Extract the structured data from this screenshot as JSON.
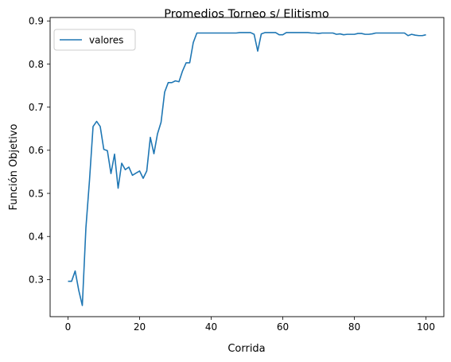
{
  "chart_data": {
    "type": "line",
    "title": "Promedios Torneo s/ Elitismo",
    "xlabel": "Corrida",
    "ylabel": "Función Objetivo",
    "xlim": [
      -5,
      105
    ],
    "ylim": [
      0.214,
      0.908
    ],
    "xticks": [
      "0",
      "20",
      "40",
      "60",
      "80",
      "100"
    ],
    "yticks": [
      "0.3",
      "0.4",
      "0.5",
      "0.6",
      "0.7",
      "0.8",
      "0.9"
    ],
    "grid": false,
    "legend": {
      "position": "upper-left",
      "entries": [
        "valores"
      ]
    },
    "series": [
      {
        "name": "valores",
        "color": "#1f77b4",
        "x": [
          0,
          1,
          2,
          3,
          4,
          5,
          6,
          7,
          8,
          9,
          10,
          11,
          12,
          13,
          14,
          15,
          16,
          17,
          18,
          19,
          20,
          21,
          22,
          23,
          24,
          25,
          26,
          27,
          28,
          29,
          30,
          31,
          32,
          33,
          34,
          35,
          36,
          37,
          38,
          39,
          40,
          41,
          42,
          43,
          44,
          45,
          46,
          47,
          48,
          49,
          50,
          51,
          52,
          53,
          54,
          55,
          56,
          57,
          58,
          59,
          60,
          61,
          62,
          63,
          64,
          65,
          66,
          67,
          68,
          69,
          70,
          71,
          72,
          73,
          74,
          75,
          76,
          77,
          78,
          79,
          80,
          81,
          82,
          83,
          84,
          85,
          86,
          87,
          88,
          89,
          90,
          91,
          92,
          93,
          94,
          95,
          96,
          97,
          98,
          99,
          100
        ],
        "values": [
          0.296,
          0.296,
          0.32,
          0.275,
          0.24,
          0.42,
          0.53,
          0.655,
          0.667,
          0.655,
          0.602,
          0.599,
          0.546,
          0.591,
          0.512,
          0.57,
          0.555,
          0.561,
          0.542,
          0.547,
          0.552,
          0.535,
          0.552,
          0.63,
          0.592,
          0.638,
          0.665,
          0.735,
          0.757,
          0.757,
          0.761,
          0.759,
          0.784,
          0.803,
          0.803,
          0.85,
          0.872,
          0.872,
          0.872,
          0.872,
          0.872,
          0.872,
          0.872,
          0.872,
          0.872,
          0.872,
          0.872,
          0.872,
          0.873,
          0.873,
          0.873,
          0.873,
          0.869,
          0.83,
          0.87,
          0.873,
          0.873,
          0.873,
          0.873,
          0.868,
          0.868,
          0.873,
          0.873,
          0.873,
          0.873,
          0.873,
          0.873,
          0.873,
          0.872,
          0.872,
          0.871,
          0.872,
          0.872,
          0.872,
          0.872,
          0.869,
          0.87,
          0.868,
          0.869,
          0.869,
          0.869,
          0.871,
          0.871,
          0.869,
          0.869,
          0.87,
          0.872,
          0.872,
          0.872,
          0.872,
          0.872,
          0.872,
          0.872,
          0.872,
          0.872,
          0.866,
          0.869,
          0.867,
          0.866,
          0.866,
          0.868
        ]
      }
    ]
  }
}
